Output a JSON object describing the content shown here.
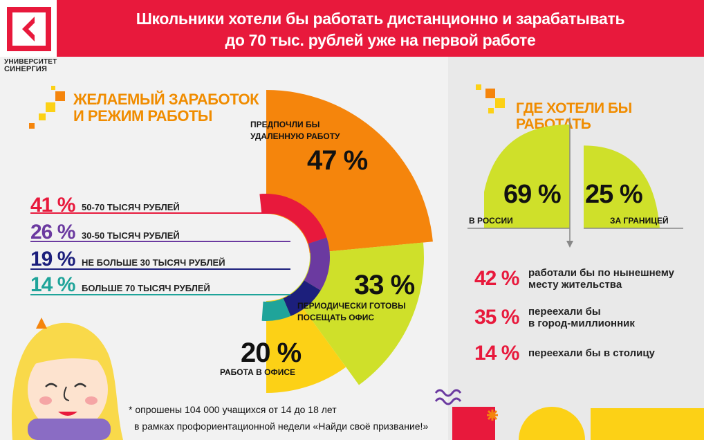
{
  "header": {
    "title_line1": "Школьники хотели бы работать дистанционно и зарабатывать",
    "title_line2": "до 70 тыс. рублей уже на первой работе",
    "logo_line1": "УНИВЕРСИТЕТ",
    "logo_line2": "СИНЕРГИЯ"
  },
  "section_left": {
    "title_line1": "ЖЕЛАЕМЫЙ ЗАРАБОТОК",
    "title_line2": "И РЕЖИМ РАБОТЫ"
  },
  "section_right": {
    "title": "ГДЕ ХОТЕЛИ БЫ РАБОТАТЬ"
  },
  "footnote": {
    "line1": "* опрошены 104 000 учащихся от 14 до 18 лет",
    "line2": "в рамках профориентационной недели «Найди своё призвание!»"
  },
  "colors": {
    "red": "#e8193c",
    "orange": "#f5850c",
    "lime": "#cfe02a",
    "yellow": "#fcd116",
    "purple": "#6b3aa0",
    "navy": "#1c1f7c",
    "teal": "#1fa49a"
  },
  "chart_data": [
    {
      "type": "pie",
      "name_hint": "work mode",
      "slices": [
        {
          "label": "ПРЕДПОЧЛИ БЫ УДАЛЕННУЮ РАБОТУ",
          "label_lines": [
            "ПРЕДПОЧЛИ БЫ",
            "УДАЛЕННУЮ РАБОТУ"
          ],
          "value": 47,
          "value_label": "47 %",
          "color": "#f5850c"
        },
        {
          "label": "ПЕРИОДИЧЕСКИ ГОТОВЫ ПОСЕЩАТЬ ОФИС",
          "label_lines": [
            "ПЕРИОДИЧЕСКИ ГОТОВЫ",
            "ПОСЕЩАТЬ ОФИС"
          ],
          "value": 33,
          "value_label": "33 %",
          "color": "#cfe02a"
        },
        {
          "label": "РАБОТА В ОФИСЕ",
          "label_lines": [
            "РАБОТА В ОФИСЕ"
          ],
          "value": 20,
          "value_label": "20 %",
          "color": "#fcd116"
        }
      ]
    },
    {
      "type": "pie",
      "name_hint": "desired salary",
      "slices": [
        {
          "label": "50-70 ТЫСЯЧ РУБЛЕЙ",
          "value": 41,
          "value_label": "41 %",
          "color": "#e8193c"
        },
        {
          "label": "30-50 ТЫСЯЧ РУБЛЕЙ",
          "value": 26,
          "value_label": "26 %",
          "color": "#6b3aa0"
        },
        {
          "label": "НЕ БОЛЬШЕ 30 ТЫСЯЧ РУБЛЕЙ",
          "value": 19,
          "value_label": "19 %",
          "color": "#1c1f7c"
        },
        {
          "label": "БОЛЬШЕ 70 ТЫСЯЧ РУБЛЕЙ",
          "value": 14,
          "value_label": "14 %",
          "color": "#1fa49a"
        }
      ]
    },
    {
      "type": "bar",
      "name_hint": "location",
      "categories": [
        "В РОССИИ",
        "ЗА ГРАНИЦЕЙ"
      ],
      "values": [
        69,
        25
      ],
      "value_labels": [
        "69 %",
        "25 %"
      ],
      "color": "#cfe02a"
    },
    {
      "type": "table",
      "rows": [
        {
          "value": 42,
          "value_label": "42 %",
          "label_lines": [
            "работали бы по нынешнему",
            "месту жительства"
          ]
        },
        {
          "value": 35,
          "value_label": "35 %",
          "label_lines": [
            "переехали бы",
            "в город-миллионник"
          ]
        },
        {
          "value": 14,
          "value_label": "14 %",
          "label_lines": [
            "переехали бы в столицу"
          ]
        }
      ]
    }
  ]
}
